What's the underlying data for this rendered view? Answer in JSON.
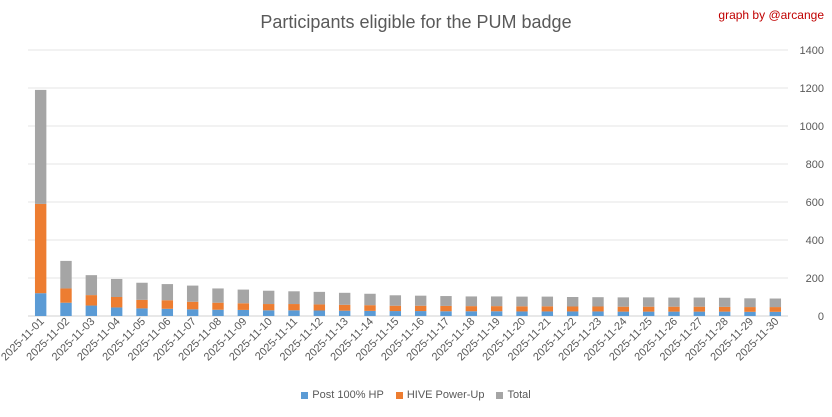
{
  "chart_data": {
    "type": "bar",
    "stacked": true,
    "title": "Participants eligible for the PUM badge",
    "credit": "graph by @arcange",
    "xlabel": "",
    "ylabel": "",
    "ylim": [
      0,
      1400
    ],
    "yticks": [
      0,
      200,
      400,
      600,
      800,
      1000,
      1200,
      1400
    ],
    "y_axis_side": "right",
    "grid": true,
    "legend_position": "bottom",
    "categories": [
      "2025-11-01",
      "2025-11-02",
      "2025-11-03",
      "2025-11-04",
      "2025-11-05",
      "2025-11-06",
      "2025-11-07",
      "2025-11-08",
      "2025-11-09",
      "2025-11-10",
      "2025-11-11",
      "2025-11-12",
      "2025-11-13",
      "2025-11-14",
      "2025-11-15",
      "2025-11-16",
      "2025-11-17",
      "2025-11-18",
      "2025-11-19",
      "2025-11-20",
      "2025-11-21",
      "2025-11-22",
      "2025-11-23",
      "2025-11-24",
      "2025-11-25",
      "2025-11-26",
      "2025-11-27",
      "2025-11-28",
      "2025-11-29",
      "2025-11-30"
    ],
    "series": [
      {
        "name": "Post 100% HP",
        "color": "#5b9bd5",
        "values": [
          120,
          70,
          55,
          45,
          40,
          38,
          35,
          33,
          32,
          30,
          30,
          29,
          28,
          27,
          26,
          26,
          25,
          25,
          25,
          24,
          24,
          24,
          24,
          23,
          23,
          23,
          23,
          23,
          22,
          22
        ]
      },
      {
        "name": "HIVE Power-Up",
        "color": "#ed7d31",
        "values": [
          470,
          75,
          55,
          55,
          45,
          45,
          40,
          37,
          35,
          33,
          33,
          32,
          31,
          30,
          28,
          28,
          28,
          27,
          27,
          27,
          27,
          26,
          26,
          26,
          26,
          26,
          26,
          25,
          25,
          25
        ]
      },
      {
        "name": "Total",
        "color": "#a5a5a5",
        "values": [
          600,
          145,
          105,
          95,
          90,
          85,
          85,
          75,
          72,
          70,
          67,
          66,
          63,
          60,
          55,
          53,
          52,
          51,
          51,
          51,
          51,
          50,
          49,
          49,
          49,
          48,
          48,
          48,
          46,
          45
        ]
      }
    ]
  }
}
